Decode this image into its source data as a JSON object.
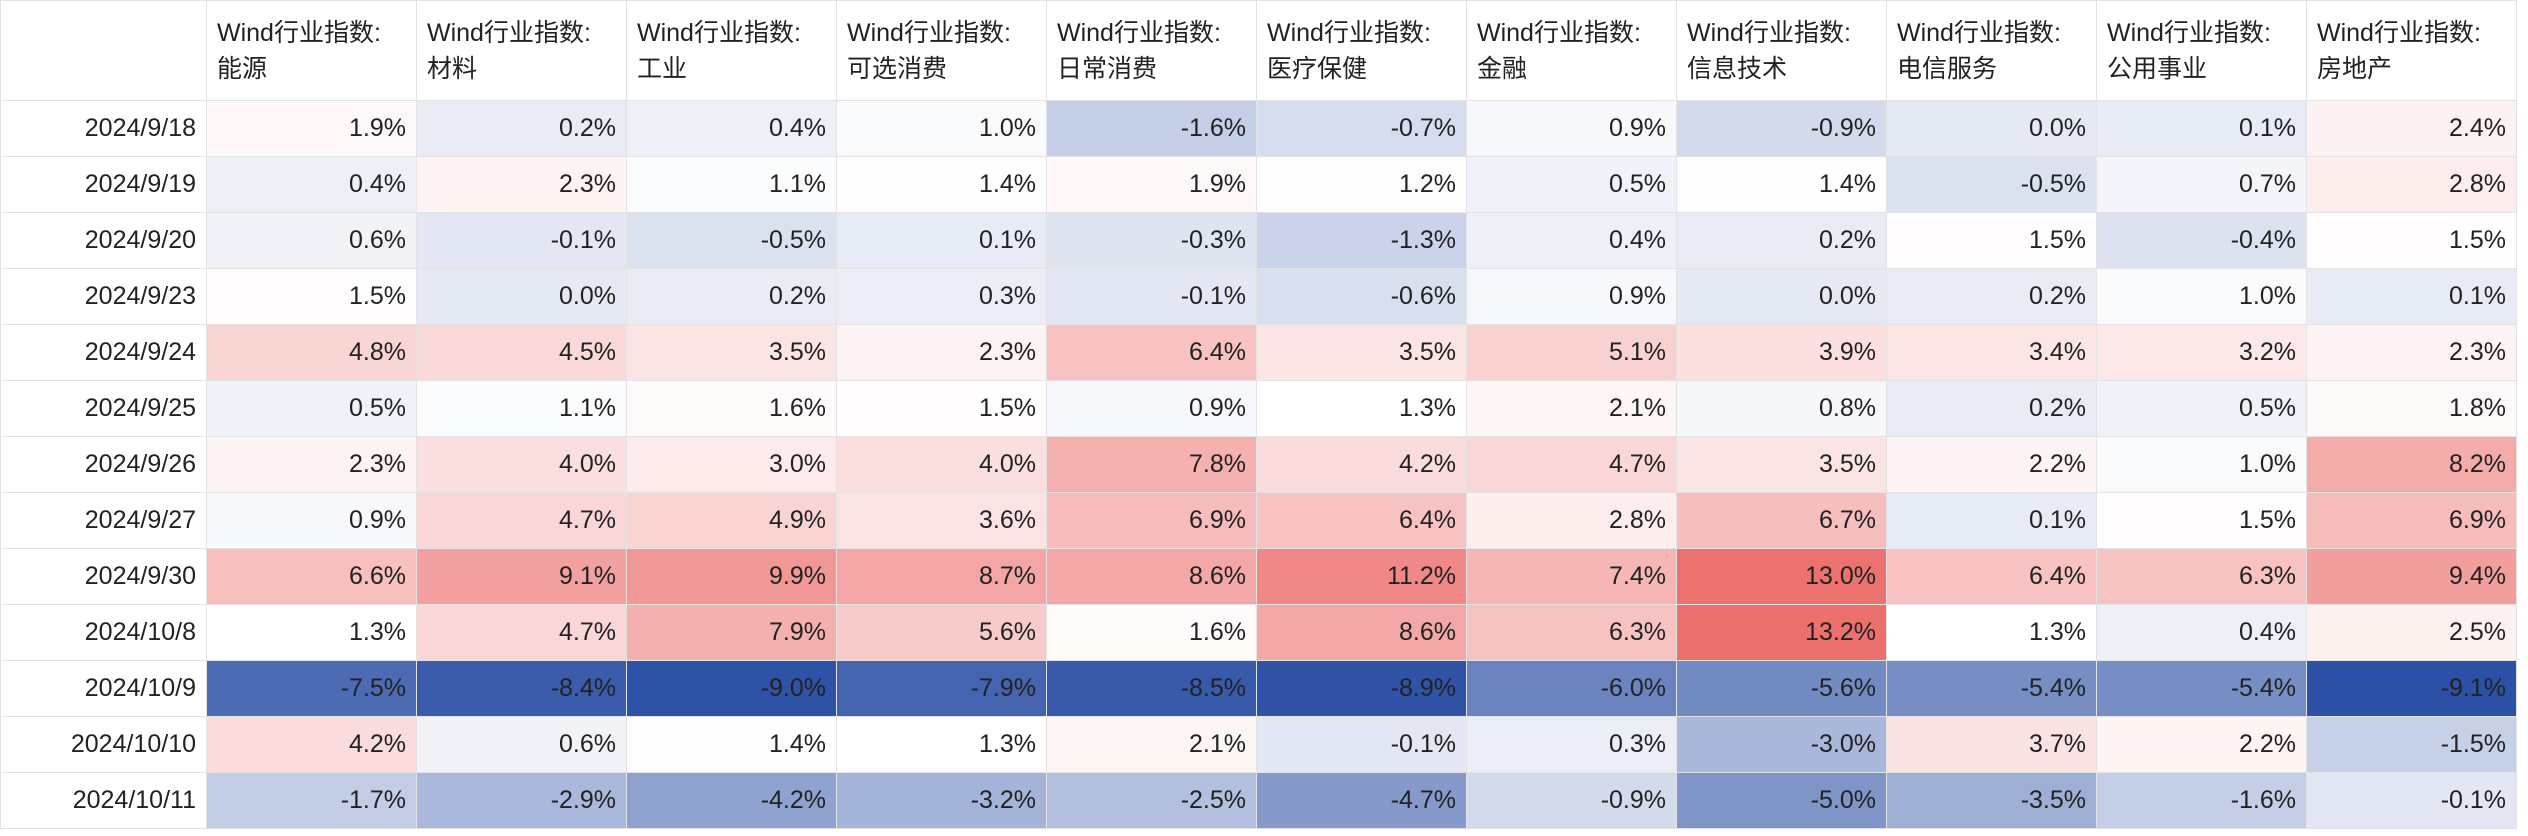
{
  "table": {
    "columns": [
      "Wind行业指数:\n能源",
      "Wind行业指数:\n材料",
      "Wind行业指数:\n工业",
      "Wind行业指数:\n可选消费",
      "Wind行业指数:\n日常消费",
      "Wind行业指数:\n医疗保健",
      "Wind行业指数:\n金融",
      "Wind行业指数:\n信息技术",
      "Wind行业指数:\n电信服务",
      "Wind行业指数:\n公用事业",
      "Wind行业指数:\n房地产"
    ],
    "rows": [
      {
        "date": "2024/9/18",
        "cells": [
          "1.9%",
          "0.2%",
          "0.4%",
          "1.0%",
          "-1.6%",
          "-0.7%",
          "0.9%",
          "-0.9%",
          "0.0%",
          "0.1%",
          "2.4%"
        ]
      },
      {
        "date": "2024/9/19",
        "cells": [
          "0.4%",
          "2.3%",
          "1.1%",
          "1.4%",
          "1.9%",
          "1.2%",
          "0.5%",
          "1.4%",
          "-0.5%",
          "0.7%",
          "2.8%"
        ]
      },
      {
        "date": "2024/9/20",
        "cells": [
          "0.6%",
          "-0.1%",
          "-0.5%",
          "0.1%",
          "-0.3%",
          "-1.3%",
          "0.4%",
          "0.2%",
          "1.5%",
          "-0.4%",
          "1.5%"
        ]
      },
      {
        "date": "2024/9/23",
        "cells": [
          "1.5%",
          "0.0%",
          "0.2%",
          "0.3%",
          "-0.1%",
          "-0.6%",
          "0.9%",
          "0.0%",
          "0.2%",
          "1.0%",
          "0.1%"
        ]
      },
      {
        "date": "2024/9/24",
        "cells": [
          "4.8%",
          "4.5%",
          "3.5%",
          "2.3%",
          "6.4%",
          "3.5%",
          "5.1%",
          "3.9%",
          "3.4%",
          "3.2%",
          "2.3%"
        ]
      },
      {
        "date": "2024/9/25",
        "cells": [
          "0.5%",
          "1.1%",
          "1.6%",
          "1.5%",
          "0.9%",
          "1.3%",
          "2.1%",
          "0.8%",
          "0.2%",
          "0.5%",
          "1.8%"
        ]
      },
      {
        "date": "2024/9/26",
        "cells": [
          "2.3%",
          "4.0%",
          "3.0%",
          "4.0%",
          "7.8%",
          "4.2%",
          "4.7%",
          "3.5%",
          "2.2%",
          "1.0%",
          "8.2%"
        ]
      },
      {
        "date": "2024/9/27",
        "cells": [
          "0.9%",
          "4.7%",
          "4.9%",
          "3.6%",
          "6.9%",
          "6.4%",
          "2.8%",
          "6.7%",
          "0.1%",
          "1.5%",
          "6.9%"
        ]
      },
      {
        "date": "2024/9/30",
        "cells": [
          "6.6%",
          "9.1%",
          "9.9%",
          "8.7%",
          "8.6%",
          "11.2%",
          "7.4%",
          "13.0%",
          "6.4%",
          "6.3%",
          "9.4%"
        ]
      },
      {
        "date": "2024/10/8",
        "cells": [
          "1.3%",
          "4.7%",
          "7.9%",
          "5.6%",
          "1.6%",
          "8.6%",
          "6.3%",
          "13.2%",
          "1.3%",
          "0.4%",
          "2.5%"
        ]
      },
      {
        "date": "2024/10/9",
        "cells": [
          "-7.5%",
          "-8.4%",
          "-9.0%",
          "-7.9%",
          "-8.5%",
          "-8.9%",
          "-6.0%",
          "-5.6%",
          "-5.4%",
          "-5.4%",
          "-9.1%"
        ]
      },
      {
        "date": "2024/10/10",
        "cells": [
          "4.2%",
          "0.6%",
          "1.4%",
          "1.3%",
          "2.1%",
          "-0.1%",
          "0.3%",
          "-3.0%",
          "3.7%",
          "2.2%",
          "-1.5%"
        ]
      },
      {
        "date": "2024/10/11",
        "cells": [
          "-1.7%",
          "-2.9%",
          "-4.2%",
          "-3.2%",
          "-2.5%",
          "-4.7%",
          "-0.9%",
          "-5.0%",
          "-3.5%",
          "-1.6%",
          "-0.1%"
        ]
      }
    ]
  }
}
